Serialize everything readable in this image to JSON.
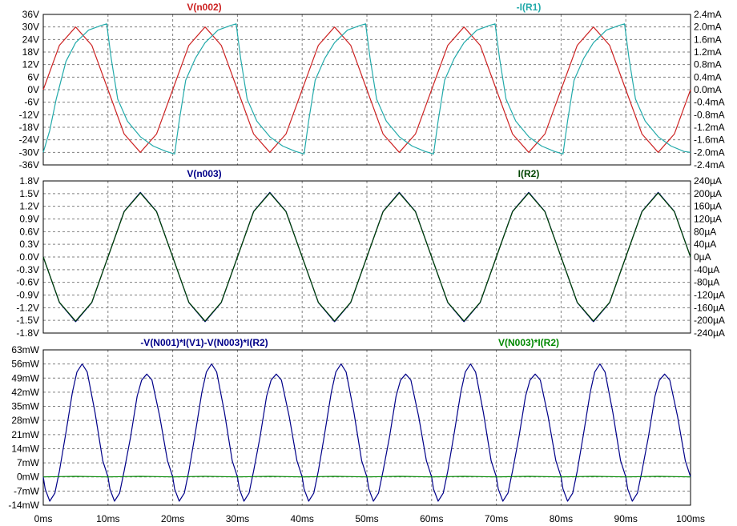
{
  "colors": {
    "background": "#ffffff",
    "frame": "#000000",
    "grid": "#808080",
    "red": "#cc2222",
    "teal": "#22aaaa",
    "navy": "#000088",
    "darkgreen": "#004400",
    "green": "#008800"
  },
  "x_axis": {
    "range": [
      0,
      100
    ],
    "unit": "ms",
    "tick_labels": [
      "0ms",
      "10ms",
      "20ms",
      "30ms",
      "40ms",
      "50ms",
      "60ms",
      "70ms",
      "80ms",
      "90ms",
      "100ms"
    ]
  },
  "chart_data": [
    {
      "type": "line",
      "title": "",
      "grid": true,
      "left_axis": {
        "range": [
          -36,
          36
        ],
        "tick_labels": [
          "36V",
          "30V",
          "24V",
          "18V",
          "12V",
          "6V",
          "0V",
          "-6V",
          "-12V",
          "-18V",
          "-24V",
          "-30V",
          "-36V"
        ]
      },
      "right_axis": {
        "range": [
          -2.4,
          2.4
        ],
        "tick_labels": [
          "2.4mA",
          "2.0mA",
          "1.6mA",
          "1.2mA",
          "0.8mA",
          "0.4mA",
          "0.0mA",
          "-0.4mA",
          "-0.8mA",
          "-1.2mA",
          "-1.6mA",
          "-2.0mA",
          "-2.4mA"
        ]
      },
      "series": [
        {
          "name": "V(n002)",
          "axis": "left",
          "color": "#cc2222",
          "x": [
            0,
            2.5,
            5,
            7.5,
            10,
            12.5,
            15,
            17.5,
            20,
            22.5,
            25,
            27.5,
            30,
            32.5,
            35,
            37.5,
            40,
            42.5,
            45,
            47.5,
            50,
            52.5,
            55,
            57.5,
            60,
            62.5,
            65,
            67.5,
            70,
            72.5,
            75,
            77.5,
            80,
            82.5,
            85,
            87.5,
            90,
            92.5,
            95,
            97.5,
            100
          ],
          "values": [
            0,
            21.2,
            30,
            21.2,
            0,
            -21.2,
            -30,
            -21.2,
            0,
            21.2,
            30,
            21.2,
            0,
            -21.2,
            -30,
            -21.2,
            0,
            21.2,
            30,
            21.2,
            0,
            -21.2,
            -30,
            -21.2,
            0,
            21.2,
            30,
            21.2,
            0,
            -21.2,
            -30,
            -21.2,
            0,
            21.2,
            30,
            21.2,
            0,
            -21.2,
            -30,
            -21.2,
            0
          ]
        },
        {
          "name": "-I(R1)",
          "axis": "right",
          "color": "#22aaaa",
          "x": [
            0,
            1,
            2,
            3.5,
            5,
            7,
            9,
            9.8,
            10.5,
            11.5,
            13,
            15,
            17,
            19,
            20.3,
            21,
            22,
            23.5,
            25,
            27,
            29,
            29.8,
            30.5,
            31.5,
            33,
            35,
            37,
            39,
            40.3,
            41,
            42,
            43.5,
            45,
            47,
            49,
            49.8,
            50.5,
            51.5,
            53,
            55,
            57,
            59,
            60.3,
            61,
            62,
            63.5,
            65,
            67,
            69,
            69.8,
            70.5,
            71.5,
            73,
            75,
            77,
            79,
            80.3,
            81,
            82,
            83.5,
            85,
            87,
            89,
            89.8,
            90.5,
            91.5,
            93,
            95,
            97,
            99,
            100
          ],
          "values": [
            -2.0,
            -1.3,
            -0.3,
            0.9,
            1.5,
            1.9,
            2.05,
            2.1,
            1.0,
            -0.3,
            -1.0,
            -1.5,
            -1.8,
            -1.97,
            -2.05,
            -1.0,
            0.3,
            1.0,
            1.5,
            1.9,
            2.05,
            2.1,
            1.0,
            -0.3,
            -1.0,
            -1.5,
            -1.8,
            -1.97,
            -2.05,
            -1.0,
            0.3,
            1.0,
            1.5,
            1.9,
            2.05,
            2.1,
            1.0,
            -0.3,
            -1.0,
            -1.5,
            -1.8,
            -1.97,
            -2.05,
            -1.0,
            0.3,
            1.0,
            1.5,
            1.9,
            2.05,
            2.1,
            1.0,
            -0.3,
            -1.0,
            -1.5,
            -1.8,
            -1.97,
            -2.05,
            -1.0,
            0.3,
            1.0,
            1.5,
            1.9,
            2.05,
            2.1,
            1.0,
            -0.3,
            -1.0,
            -1.5,
            -1.8,
            -1.97,
            -2.0
          ]
        }
      ]
    },
    {
      "type": "line",
      "title": "",
      "grid": true,
      "left_axis": {
        "range": [
          -1.8,
          1.8
        ],
        "tick_labels": [
          "1.8V",
          "1.5V",
          "1.2V",
          "0.9V",
          "0.6V",
          "0.3V",
          "0.0V",
          "-0.3V",
          "-0.6V",
          "-0.9V",
          "-1.2V",
          "-1.5V",
          "-1.8V"
        ]
      },
      "right_axis": {
        "range": [
          -240,
          240
        ],
        "tick_labels": [
          "240µA",
          "200µA",
          "160µA",
          "120µA",
          "80µA",
          "40µA",
          "0µA",
          "-40µA",
          "-80µA",
          "-120µA",
          "-160µA",
          "-200µA",
          "-240µA"
        ]
      },
      "series": [
        {
          "name": "V(n003)",
          "axis": "left",
          "color": "#000088",
          "x": [
            0,
            2.5,
            5,
            7.5,
            10,
            12.5,
            15,
            17.5,
            20,
            22.5,
            25,
            27.5,
            30,
            32.5,
            35,
            37.5,
            40,
            42.5,
            45,
            47.5,
            50,
            52.5,
            55,
            57.5,
            60,
            62.5,
            65,
            67.5,
            70,
            72.5,
            75,
            77.5,
            80,
            82.5,
            85,
            87.5,
            90,
            92.5,
            95,
            97.5,
            100
          ],
          "values": [
            0,
            -1.08,
            -1.53,
            -1.08,
            0,
            1.08,
            1.53,
            1.08,
            0,
            -1.08,
            -1.53,
            -1.08,
            0,
            1.08,
            1.53,
            1.08,
            0,
            -1.08,
            -1.53,
            -1.08,
            0,
            1.08,
            1.53,
            1.08,
            0,
            -1.08,
            -1.53,
            -1.08,
            0,
            1.08,
            1.53,
            1.08,
            0,
            -1.08,
            -1.53,
            -1.08,
            0,
            1.08,
            1.53,
            1.08,
            0
          ]
        },
        {
          "name": "I(R2)",
          "axis": "right",
          "color": "#004400",
          "x": [
            0,
            2.5,
            5,
            7.5,
            10,
            12.5,
            15,
            17.5,
            20,
            22.5,
            25,
            27.5,
            30,
            32.5,
            35,
            37.5,
            40,
            42.5,
            45,
            47.5,
            50,
            52.5,
            55,
            57.5,
            60,
            62.5,
            65,
            67.5,
            70,
            72.5,
            75,
            77.5,
            80,
            82.5,
            85,
            87.5,
            90,
            92.5,
            95,
            97.5,
            100
          ],
          "values": [
            0,
            -143,
            -202,
            -143,
            0,
            143,
            202,
            143,
            0,
            -143,
            -202,
            -143,
            0,
            143,
            202,
            143,
            0,
            -143,
            -202,
            -143,
            0,
            143,
            202,
            143,
            0,
            -143,
            -202,
            -143,
            0,
            143,
            202,
            143,
            0,
            -143,
            -202,
            -143,
            0,
            143,
            202,
            143,
            0
          ]
        }
      ]
    },
    {
      "type": "line",
      "title": "",
      "grid": true,
      "left_axis": {
        "range": [
          -14,
          63
        ],
        "tick_labels": [
          "63mW",
          "56mW",
          "49mW",
          "42mW",
          "35mW",
          "28mW",
          "21mW",
          "14mW",
          "7mW",
          "0mW",
          "-7mW",
          "-14mW"
        ]
      },
      "series": [
        {
          "name": "-V(N001)*I(V1)-V(N003)*I(R2)",
          "axis": "left",
          "color": "#000088",
          "x": [
            0,
            0.3,
            1,
            1.8,
            2.5,
            3.5,
            4.5,
            5.2,
            6,
            6.8,
            8,
            9.2,
            10,
            10.3,
            11,
            11.8,
            12.5,
            13.5,
            14.5,
            15.2,
            16,
            16.8,
            18,
            19.2,
            20,
            20.3,
            21,
            21.8,
            22.5,
            23.5,
            24.5,
            25.2,
            26,
            26.8,
            28,
            29.2,
            30,
            30.3,
            31,
            31.8,
            32.5,
            33.5,
            34.5,
            35.2,
            36,
            36.8,
            38,
            39.2,
            40,
            40.3,
            41,
            41.8,
            42.5,
            43.5,
            44.5,
            45.2,
            46,
            46.8,
            48,
            49.2,
            50,
            50.3,
            51,
            51.8,
            52.5,
            53.5,
            54.5,
            55.2,
            56,
            56.8,
            58,
            59.2,
            60,
            60.3,
            61,
            61.8,
            62.5,
            63.5,
            64.5,
            65.2,
            66,
            66.8,
            68,
            69.2,
            70,
            70.3,
            71,
            71.8,
            72.5,
            73.5,
            74.5,
            75.2,
            76,
            76.8,
            78,
            79.2,
            80,
            80.3,
            81,
            81.8,
            82.5,
            83.5,
            84.5,
            85.2,
            86,
            86.8,
            88,
            89.2,
            90,
            90.3,
            91,
            91.8,
            92.5,
            93.5,
            94.5,
            95.2,
            96,
            96.8,
            98,
            99.2,
            100
          ],
          "values": [
            0,
            -6,
            -12,
            -8,
            3,
            22,
            42,
            52,
            56,
            52,
            32,
            8,
            0,
            -6,
            -12,
            -8,
            3,
            20,
            40,
            48,
            51,
            48,
            30,
            8,
            0,
            -6,
            -12,
            -8,
            3,
            22,
            42,
            52,
            56,
            52,
            32,
            8,
            0,
            -6,
            -12,
            -8,
            3,
            20,
            40,
            48,
            51,
            48,
            30,
            8,
            0,
            -6,
            -12,
            -8,
            3,
            22,
            42,
            52,
            56,
            52,
            32,
            8,
            0,
            -6,
            -12,
            -8,
            3,
            20,
            40,
            48,
            51,
            48,
            30,
            8,
            0,
            -6,
            -12,
            -8,
            3,
            22,
            42,
            52,
            56,
            52,
            32,
            8,
            0,
            -6,
            -12,
            -8,
            3,
            20,
            40,
            48,
            51,
            48,
            30,
            8,
            0,
            -6,
            -12,
            -8,
            3,
            22,
            42,
            52,
            56,
            52,
            32,
            8,
            0,
            -6,
            -12,
            -8,
            3,
            20,
            40,
            48,
            51,
            48,
            30,
            8,
            0
          ]
        },
        {
          "name": "V(N003)*I(R2)",
          "axis": "left",
          "color": "#008800",
          "x": [
            0,
            2.5,
            5,
            7.5,
            10,
            12.5,
            15,
            17.5,
            20,
            22.5,
            25,
            27.5,
            30,
            32.5,
            35,
            37.5,
            40,
            42.5,
            45,
            47.5,
            50,
            52.5,
            55,
            57.5,
            60,
            62.5,
            65,
            67.5,
            70,
            72.5,
            75,
            77.5,
            80,
            82.5,
            85,
            87.5,
            90,
            92.5,
            95,
            97.5,
            100
          ],
          "values": [
            0,
            0.15,
            0.3,
            0.15,
            0,
            0.15,
            0.3,
            0.15,
            0,
            0.15,
            0.3,
            0.15,
            0,
            0.15,
            0.3,
            0.15,
            0,
            0.15,
            0.3,
            0.15,
            0,
            0.15,
            0.3,
            0.15,
            0,
            0.15,
            0.3,
            0.15,
            0,
            0.15,
            0.3,
            0.15,
            0,
            0.15,
            0.3,
            0.15,
            0,
            0.15,
            0.3,
            0.15,
            0
          ]
        }
      ]
    }
  ]
}
